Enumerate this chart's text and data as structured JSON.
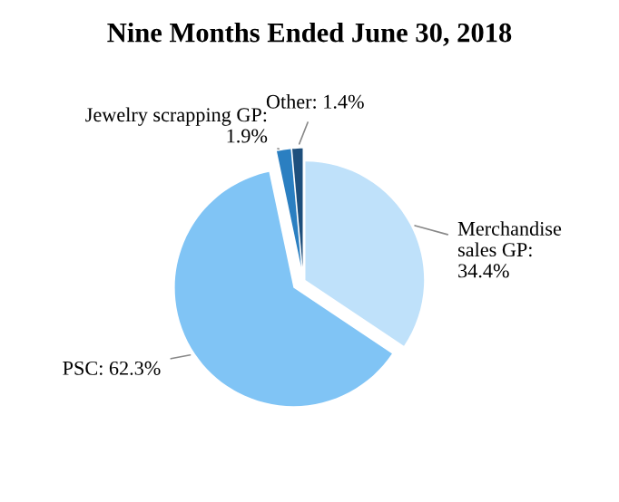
{
  "chart_data": {
    "type": "pie",
    "title": "Nine Months Ended June 30, 2018",
    "categories": [
      "Merchandise sales GP: 34.4%",
      "PSC: 62.3%",
      "Jewelry scrapping GP: 1.9%",
      "Other: 1.4%"
    ],
    "values": [
      34.4,
      62.3,
      1.9,
      1.4
    ],
    "colors": [
      "#bfe1fa",
      "#80c4f5",
      "#2b7fc1",
      "#1e4f7c"
    ]
  }
}
